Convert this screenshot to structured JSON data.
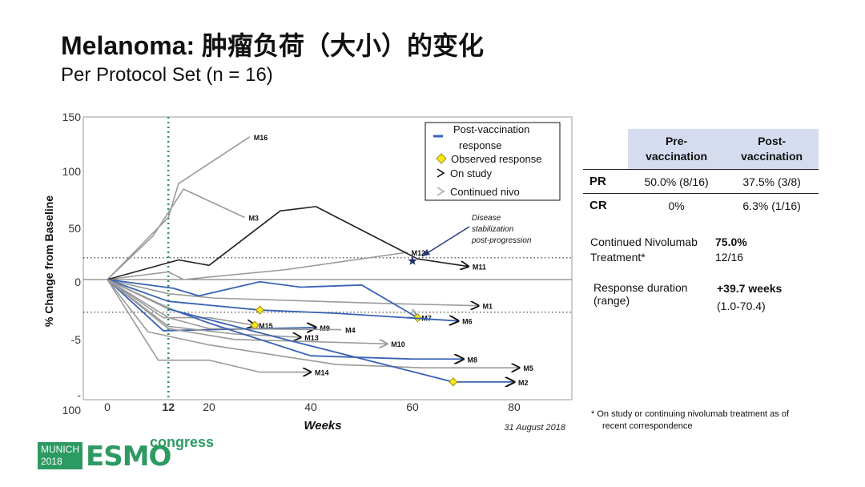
{
  "slide": {
    "title": "Melanoma: 肿瘤负荷（大小）的变化",
    "subtitle": "Per Protocol Set (n = 16)"
  },
  "chart_data": {
    "type": "line",
    "xlabel": "Weeks",
    "ylabel": "% Change from Baseline",
    "xlim": [
      0,
      85
    ],
    "ylim": [
      -100,
      150
    ],
    "x_ticks": [
      "0",
      "12",
      "20",
      "40",
      "60",
      "80"
    ],
    "y_ticks": [
      "150",
      "100",
      "50",
      "0",
      "-5",
      "-",
      "100"
    ],
    "reference_lines": [
      {
        "axis": "x",
        "value": 12,
        "style": "dotted",
        "color": "#2a9a55"
      },
      {
        "axis": "y",
        "value": 20,
        "style": "dotted",
        "color": "#333333"
      },
      {
        "axis": "y",
        "value": -30,
        "style": "dotted",
        "color": "#333333"
      },
      {
        "axis": "y",
        "value": 0,
        "style": "solid",
        "color": "#666666"
      }
    ],
    "legend": {
      "placement": "top-right",
      "items": [
        {
          "label": "Post-vaccination",
          "label2": "response",
          "symbol": "line-blue"
        },
        {
          "label": "Observed response",
          "symbol": "diamond"
        },
        {
          "label": "On study",
          "symbol": "arrow-black"
        },
        {
          "label": "Continued nivo",
          "symbol": "arrow-gray"
        }
      ]
    },
    "annotation": {
      "lines": [
        "Disease",
        "stabilization",
        "post-progression"
      ],
      "star": {
        "x": 60,
        "y": 17
      }
    },
    "date_note": "31 August 2018",
    "series": [
      {
        "name": "M16",
        "points": [
          [
            0,
            0
          ],
          [
            12,
            57
          ],
          [
            14,
            88
          ],
          [
            28,
            131
          ]
        ],
        "segments": [
          {
            "from": 0,
            "to": 3,
            "color": "gray"
          }
        ]
      },
      {
        "name": "M3",
        "points": [
          [
            0,
            0
          ],
          [
            9,
            40
          ],
          [
            15,
            83
          ],
          [
            27,
            57
          ]
        ],
        "segments": [
          {
            "from": 0,
            "to": 3,
            "color": "gray"
          }
        ]
      },
      {
        "name": "M12",
        "points": [
          [
            0,
            0
          ],
          [
            12,
            7
          ],
          [
            15,
            0
          ],
          [
            35,
            9
          ],
          [
            59,
            25
          ]
        ],
        "segments": [
          {
            "from": 0,
            "to": 4,
            "color": "gray"
          }
        ]
      },
      {
        "name": "M11",
        "points": [
          [
            0,
            0
          ],
          [
            14,
            18
          ],
          [
            20,
            13
          ],
          [
            34,
            63
          ],
          [
            41,
            67
          ],
          [
            61,
            19
          ],
          [
            71,
            12
          ]
        ],
        "segments": [
          {
            "from": 0,
            "to": 6,
            "color": "black"
          }
        ],
        "end_marker": "arrow-black"
      },
      {
        "name": "M1",
        "points": [
          [
            0,
            0
          ],
          [
            12,
            -13
          ],
          [
            21,
            -17
          ],
          [
            55,
            -22
          ],
          [
            73,
            -24
          ]
        ],
        "segments": [
          {
            "from": 0,
            "to": 4,
            "color": "gray"
          }
        ],
        "end_marker": "arrow-black"
      },
      {
        "name": "M7",
        "points": [
          [
            0,
            0
          ],
          [
            13,
            -8
          ],
          [
            18,
            -15
          ],
          [
            30,
            -2
          ],
          [
            38,
            -7
          ],
          [
            50,
            -5
          ],
          [
            61,
            -35
          ]
        ],
        "segments": [
          {
            "from": 0,
            "to": 6,
            "color": "blue"
          }
        ],
        "end_marker": "arrow-gray",
        "diamond_at": 6
      },
      {
        "name": "M6",
        "points": [
          [
            0,
            0
          ],
          [
            12,
            -20
          ],
          [
            30,
            -28
          ],
          [
            45,
            -31
          ],
          [
            69,
            -38
          ]
        ],
        "segments": [
          {
            "from": 0,
            "to": 4,
            "color": "blue"
          }
        ],
        "end_marker": "arrow-black",
        "diamond_at": 2
      },
      {
        "name": "M15",
        "points": [
          [
            0,
            0
          ],
          [
            11,
            -35
          ],
          [
            20,
            -35
          ],
          [
            29,
            -42
          ]
        ],
        "segments": [
          {
            "from": 0,
            "to": 3,
            "color": "gray"
          }
        ],
        "end_marker": "arrow-black",
        "diamond_at": 3
      },
      {
        "name": "M9",
        "points": [
          [
            0,
            0
          ],
          [
            11,
            -47
          ],
          [
            20,
            -46
          ],
          [
            41,
            -44
          ]
        ],
        "segments": [
          {
            "from": 0,
            "to": 3,
            "color": "blue"
          }
        ],
        "end_marker": "arrow-black"
      },
      {
        "name": "M4",
        "points": [
          [
            0,
            0
          ],
          [
            12,
            -35
          ],
          [
            20,
            -45
          ],
          [
            46,
            -46
          ]
        ],
        "segments": [
          {
            "from": 0,
            "to": 3,
            "color": "gray"
          }
        ]
      },
      {
        "name": "M13",
        "points": [
          [
            0,
            0
          ],
          [
            12,
            -43
          ],
          [
            25,
            -50
          ],
          [
            38,
            -53
          ]
        ],
        "segments": [
          {
            "from": 0,
            "to": 3,
            "color": "gray"
          }
        ],
        "end_marker": "arrow-black"
      },
      {
        "name": "M10",
        "points": [
          [
            0,
            0
          ],
          [
            12,
            -45
          ],
          [
            25,
            -55
          ],
          [
            55,
            -59
          ]
        ],
        "segments": [
          {
            "from": 0,
            "to": 3,
            "color": "gray"
          }
        ],
        "end_marker": "arrow-gray"
      },
      {
        "name": "M8",
        "points": [
          [
            0,
            0
          ],
          [
            13,
            -28
          ],
          [
            20,
            -40
          ],
          [
            40,
            -70
          ],
          [
            60,
            -73
          ],
          [
            70,
            -73
          ]
        ],
        "segments": [
          {
            "from": 0,
            "to": 1,
            "color": "gray"
          },
          {
            "from": 1,
            "to": 5,
            "color": "blue"
          }
        ],
        "end_marker": "arrow-black"
      },
      {
        "name": "M5",
        "points": [
          [
            0,
            0
          ],
          [
            8,
            -48
          ],
          [
            20,
            -60
          ],
          [
            45,
            -78
          ],
          [
            62,
            -81
          ],
          [
            81,
            -81
          ]
        ],
        "segments": [
          {
            "from": 0,
            "to": 5,
            "color": "gray"
          }
        ],
        "end_marker": "arrow-black"
      },
      {
        "name": "M2",
        "points": [
          [
            0,
            0
          ],
          [
            12,
            -27
          ],
          [
            35,
            -55
          ],
          [
            68,
            -94
          ],
          [
            80,
            -94
          ]
        ],
        "segments": [
          {
            "from": 0,
            "to": 1,
            "color": "gray"
          },
          {
            "from": 1,
            "to": 4,
            "color": "blue"
          }
        ],
        "end_marker": "arrow-black",
        "diamond_at": 3
      },
      {
        "name": "M14",
        "points": [
          [
            0,
            0
          ],
          [
            10,
            -74
          ],
          [
            20,
            -74
          ],
          [
            30,
            -85
          ],
          [
            40,
            -85
          ]
        ],
        "segments": [
          {
            "from": 0,
            "to": 4,
            "color": "gray"
          }
        ],
        "end_marker": "arrow-black"
      }
    ]
  },
  "table": {
    "headers": [
      "",
      "Pre-\nvaccination",
      "Post-\nvaccination"
    ],
    "rows": [
      {
        "label": "PR",
        "pre": "50.0% (8/16)",
        "post": "37.5% (3/8)"
      },
      {
        "label": "CR",
        "pre": "0%",
        "post": "6.3% (1/16)"
      }
    ]
  },
  "continued": {
    "label1": "Continued Nivolumab",
    "label2": "Treatment*",
    "value": "75.0%",
    "fraction": "12/16"
  },
  "response_duration": {
    "label1": "Response duration",
    "label2": "(range)",
    "value": "+39.7 weeks",
    "range": "(1.0-70.4)"
  },
  "footnote": {
    "line1": "*   On study or continuing nivolumab treatment as of",
    "line2": "recent correspondence"
  },
  "logo": {
    "city": "MUNICH",
    "year": "2018",
    "brand": "ESMO",
    "word": "congress"
  }
}
